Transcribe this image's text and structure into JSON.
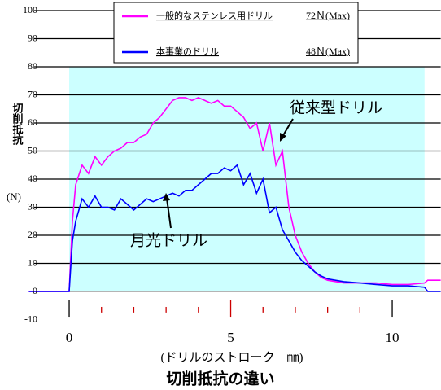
{
  "chart_data": {
    "type": "line",
    "title": "切削抵抗の違い",
    "xlabel": "(ドリルのストローク　㎜)",
    "ylabel": "切削抵抗",
    "yunit": "(N)",
    "annotations": [
      "従来型ドリル",
      "月光ドリル"
    ],
    "x": [
      -1.25,
      0,
      0.1,
      0.2,
      0.4,
      0.6,
      0.8,
      1.0,
      1.2,
      1.4,
      1.6,
      1.8,
      2.0,
      2.2,
      2.4,
      2.6,
      2.8,
      3.0,
      3.2,
      3.4,
      3.6,
      3.8,
      4.0,
      4.2,
      4.4,
      4.6,
      4.8,
      5.0,
      5.2,
      5.4,
      5.6,
      5.8,
      6.0,
      6.2,
      6.4,
      6.6,
      6.8,
      7.0,
      7.2,
      7.4,
      7.6,
      7.8,
      8.0,
      8.5,
      9,
      9.5,
      10,
      10.5,
      11,
      11.1,
      11.5
    ],
    "series": [
      {
        "name": "一般的なステンレス用ドリル",
        "legend_value": "72Ｎ(Max)",
        "color": "#ff00ff",
        "values": [
          0,
          0,
          25,
          38,
          45,
          42,
          48,
          45,
          48,
          50,
          51,
          53,
          53,
          55,
          56,
          60,
          62,
          65,
          68,
          69,
          69,
          68,
          69,
          68,
          67,
          68,
          66,
          66,
          64,
          62,
          58,
          60,
          50,
          60,
          45,
          50,
          30,
          20,
          14,
          10,
          7,
          5,
          4,
          3,
          3,
          3,
          2.5,
          2.5,
          3,
          4,
          4
        ]
      },
      {
        "name": "本事業のドリル",
        "legend_value": "48Ｎ(Max)",
        "color": "#0000ff",
        "values": [
          0,
          0,
          18,
          25,
          33,
          30,
          34,
          30,
          30,
          29,
          33,
          31,
          29,
          31,
          33,
          32,
          33,
          34,
          35,
          34,
          36,
          36,
          38,
          40,
          42,
          42,
          44,
          43,
          45,
          38,
          42,
          35,
          40,
          28,
          30,
          22,
          18,
          14,
          11,
          9,
          7,
          5.5,
          4.5,
          3.5,
          3,
          2.5,
          2,
          2,
          1.5,
          0,
          0
        ]
      }
    ],
    "xlim": [
      -1.25,
      11.5
    ],
    "xticks": [
      0,
      5,
      10
    ],
    "xminorticks": [
      1,
      2,
      3,
      4,
      6,
      7,
      8,
      9
    ],
    "ylim": [
      -10,
      100
    ],
    "yticks": [
      -10,
      0,
      10,
      20,
      30,
      40,
      50,
      60,
      70,
      80,
      90,
      100
    ],
    "grid": true,
    "shaded_region": {
      "x": [
        0,
        11
      ],
      "y": [
        0,
        80
      ],
      "color": "#ccffff"
    }
  }
}
